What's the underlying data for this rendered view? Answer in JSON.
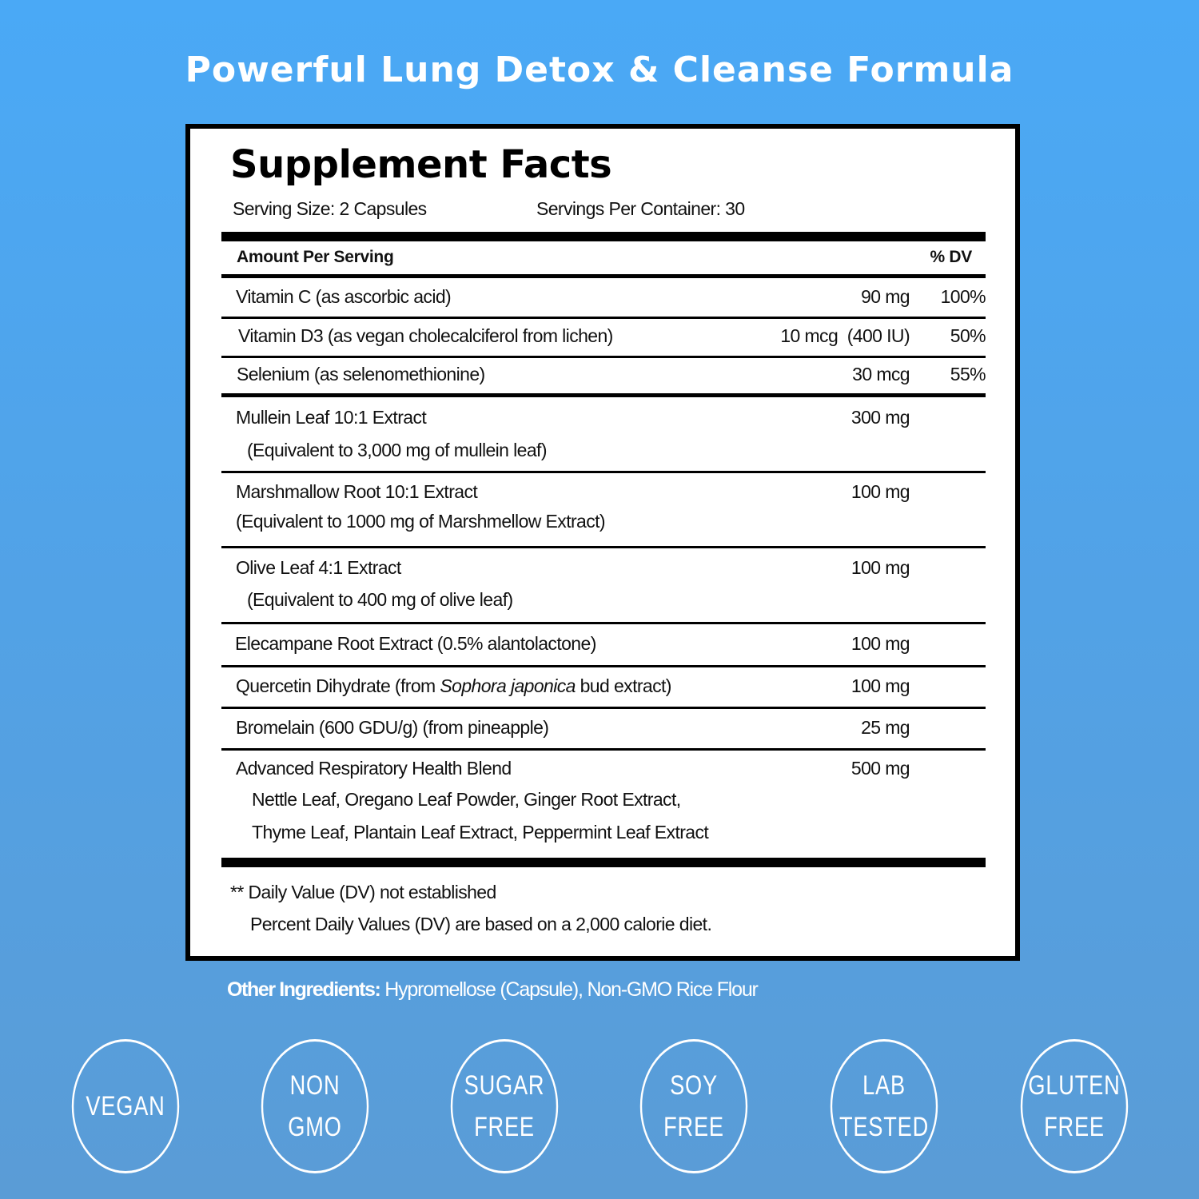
{
  "headline": "Powerful Lung Detox & Cleanse Formula",
  "facts": {
    "title": "Supplement Facts",
    "serving_size": "Serving Size: 2 Capsules",
    "servings_per_container": "Servings Per Container: 30",
    "amount_header": "Amount Per Serving",
    "dv_header": "% DV",
    "rows": [
      {
        "name": [
          "Vitamin C (as ascorbic acid)"
        ],
        "amount": "90 mg",
        "dv": "100%"
      },
      {
        "name": [
          "Vitamin D3 (as vegan cholecalciferol from lichen)"
        ],
        "amount": "10 mcg  (400 IU)",
        "dv": "50%"
      },
      {
        "name": [
          "Selenium (as selenomethionine)"
        ],
        "amount": "30 mcg",
        "dv": "55%"
      },
      {
        "name": [
          "Mullein Leaf 10:1 Extract",
          "(Equivalent to 3,000 mg of mullein leaf)"
        ],
        "amount": "300 mg",
        "dv": ""
      },
      {
        "name": [
          "Marshmallow Root 10:1 Extract",
          "(Equivalent to 1000 mg of Marshmellow Extract)"
        ],
        "amount": "100 mg",
        "dv": ""
      },
      {
        "name": [
          "Olive Leaf 4:1 Extract",
          "(Equivalent to 400 mg of olive leaf)"
        ],
        "amount": "100 mg",
        "dv": ""
      },
      {
        "name": [
          "Elecampane Root Extract (0.5% alantolactone)"
        ],
        "amount": "100 mg",
        "dv": ""
      },
      {
        "name": [
          "Quercetin Dihydrate (from ",
          "Sophora japonica",
          " bud extract)"
        ],
        "amount": "100 mg",
        "dv": ""
      },
      {
        "name": [
          "Bromelain (600 GDU/g) (from pineapple)"
        ],
        "amount": "25 mg",
        "dv": ""
      },
      {
        "name": [
          "Advanced Respiratory Health Blend",
          "Nettle Leaf, Oregano Leaf Powder, Ginger Root Extract,",
          "Thyme Leaf, Plantain Leaf Extract, Peppermint Leaf Extract"
        ],
        "amount": "500 mg",
        "dv": ""
      }
    ],
    "footnote_1": "** Daily Value (DV) not established",
    "footnote_2": "Percent Daily Values (DV) are based on a 2,000 calorie diet."
  },
  "other_ingredients": {
    "label": "Other Ingredients:",
    "value": " Hypromellose (Capsule), Non-GMO Rice Flour"
  },
  "badges": [
    [
      "VEGAN"
    ],
    [
      "NON",
      "GMO"
    ],
    [
      "SUGAR",
      "FREE"
    ],
    [
      "SOY",
      "FREE"
    ],
    [
      "LAB",
      "TESTED"
    ],
    [
      "GLUTEN",
      "FREE"
    ]
  ]
}
